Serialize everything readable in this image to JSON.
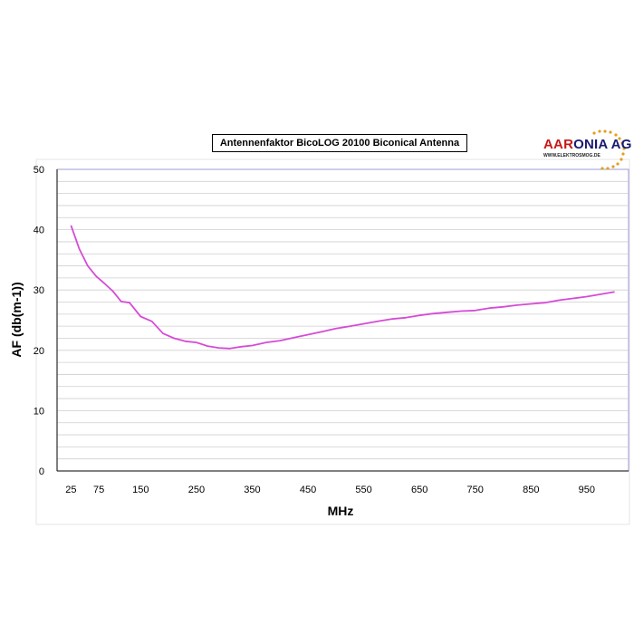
{
  "chart_data": {
    "type": "line",
    "title": "Antennenfaktor BicoLOG 20100 Biconical Antenna",
    "xlabel": "MHz",
    "ylabel": "AF (db(m-1))",
    "ylim": [
      0,
      50
    ],
    "xlim": [
      0,
      1025
    ],
    "x_ticks": [
      25,
      75,
      150,
      250,
      350,
      450,
      550,
      650,
      750,
      850,
      950
    ],
    "x_tick_labels": [
      "25",
      "75",
      "150",
      "250",
      "350",
      "450",
      "550",
      "650",
      "750",
      "850",
      "950"
    ],
    "y_ticks": [
      0,
      10,
      20,
      30,
      40,
      50
    ],
    "y_tick_labels": [
      "0",
      "10",
      "20",
      "30",
      "40",
      "50"
    ],
    "grid": "horizontal",
    "line_color": "#d64bd6",
    "series": [
      {
        "x": [
          25,
          40,
          55,
          70,
          85,
          100,
          115,
          130,
          150,
          170,
          190,
          210,
          230,
          250,
          270,
          290,
          310,
          330,
          350,
          375,
          400,
          425,
          450,
          475,
          500,
          525,
          550,
          575,
          600,
          625,
          650,
          675,
          700,
          725,
          750,
          775,
          800,
          825,
          850,
          875,
          900,
          925,
          950,
          975,
          1000
        ],
        "y": [
          40.7,
          36.8,
          34.0,
          32.3,
          31.1,
          29.8,
          28.1,
          27.9,
          25.6,
          24.8,
          22.8,
          22.0,
          21.5,
          21.3,
          20.7,
          20.4,
          20.3,
          20.6,
          20.8,
          21.3,
          21.6,
          22.1,
          22.6,
          23.1,
          23.6,
          24.0,
          24.4,
          24.8,
          25.2,
          25.4,
          25.8,
          26.1,
          26.3,
          26.5,
          26.6,
          27.0,
          27.2,
          27.5,
          27.7,
          27.9,
          28.3,
          28.6,
          28.9,
          29.3,
          29.7
        ]
      }
    ]
  },
  "logo": {
    "brand_part1": "AAR",
    "brand_part2": "ONIA AG",
    "url": "WWW.ELEKTROSMOG.DE"
  }
}
